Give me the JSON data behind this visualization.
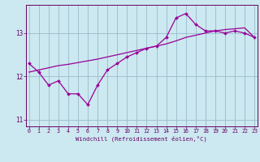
{
  "title": "",
  "xlabel": "Windchill (Refroidissement éolien,°C)",
  "bg_color": "#cce8f0",
  "line_color": "#990099",
  "grid_color": "#99bbcc",
  "axis_color": "#660066",
  "tick_color": "#660066",
  "hours": [
    0,
    1,
    2,
    3,
    4,
    5,
    6,
    7,
    8,
    9,
    10,
    11,
    12,
    13,
    14,
    15,
    16,
    17,
    18,
    19,
    20,
    21,
    22,
    23
  ],
  "windchill": [
    12.3,
    12.1,
    11.8,
    11.9,
    11.6,
    11.6,
    11.35,
    11.8,
    12.15,
    12.3,
    12.45,
    12.55,
    12.65,
    12.7,
    12.9,
    13.35,
    13.45,
    13.2,
    13.05,
    13.05,
    13.0,
    13.05,
    13.0,
    12.9
  ],
  "trend": [
    12.1,
    12.15,
    12.2,
    12.25,
    12.28,
    12.32,
    12.36,
    12.4,
    12.45,
    12.5,
    12.55,
    12.6,
    12.65,
    12.7,
    12.75,
    12.82,
    12.9,
    12.95,
    13.0,
    13.05,
    13.08,
    13.1,
    13.12,
    12.9
  ],
  "ylim": [
    10.85,
    13.65
  ],
  "yticks": [
    11,
    12,
    13
  ],
  "xticks": [
    0,
    1,
    2,
    3,
    4,
    5,
    6,
    7,
    8,
    9,
    10,
    11,
    12,
    13,
    14,
    15,
    16,
    17,
    18,
    19,
    20,
    21,
    22,
    23
  ]
}
